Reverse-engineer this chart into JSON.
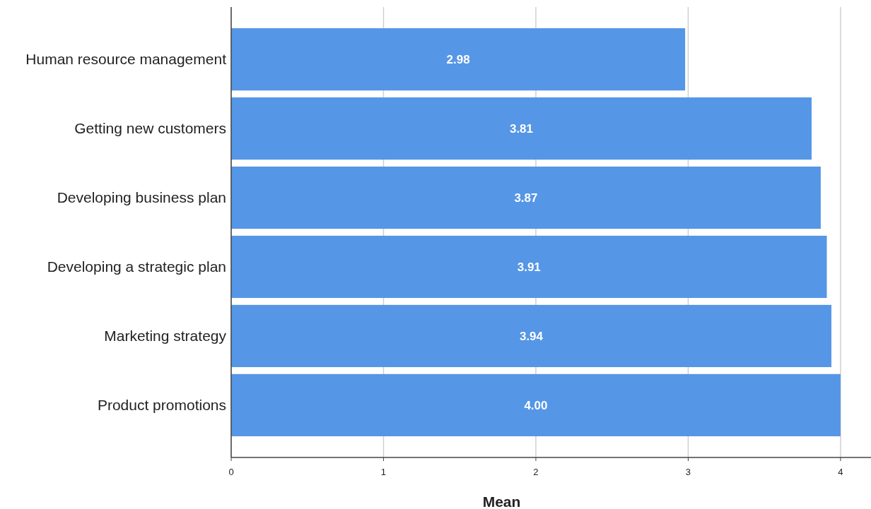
{
  "chart_data": {
    "type": "bar",
    "orientation": "horizontal",
    "xlabel": "Mean",
    "categories": [
      "Human resource management",
      "Getting new customers",
      "Developing business plan",
      "Developing a strategic plan",
      "Marketing strategy",
      "Product promotions"
    ],
    "values": [
      2.98,
      3.81,
      3.87,
      3.91,
      3.94,
      4.0
    ],
    "value_labels": [
      "2.98",
      "3.81",
      "3.87",
      "3.91",
      "3.94",
      "4.00"
    ],
    "color": "#5596e6",
    "xlim": [
      0,
      4.2
    ],
    "xticks": [
      0,
      1,
      2,
      3,
      4
    ],
    "grid": "x"
  }
}
